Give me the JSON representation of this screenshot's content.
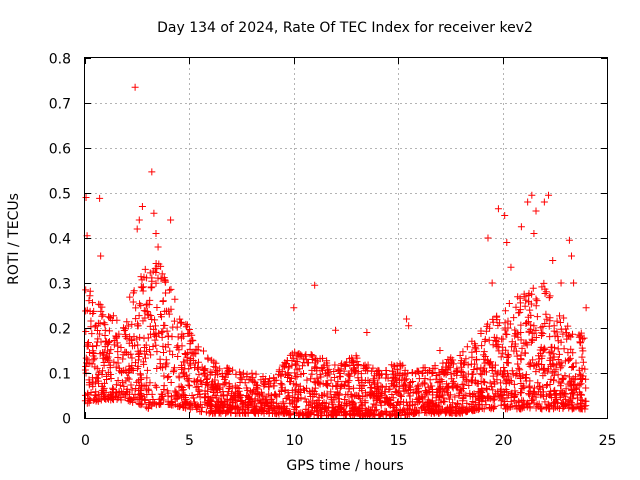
{
  "chart_data": {
    "type": "scatter",
    "title": "Day 134 of 2024, Rate Of TEC Index for receiver kev2",
    "xlabel": "GPS time / hours",
    "ylabel": "ROTI / TECUs",
    "xlim": [
      0,
      25
    ],
    "ylim": [
      0,
      0.8
    ],
    "x_ticks": [
      0,
      5,
      10,
      15,
      20,
      25
    ],
    "y_ticks": [
      0,
      0.1,
      0.2,
      0.3,
      0.4,
      0.5,
      0.6,
      0.7,
      0.8
    ],
    "x_tick_labels": [
      "0",
      "5",
      "10",
      "15",
      "20",
      "25"
    ],
    "y_tick_labels": [
      "0",
      "0.1",
      "0.2",
      "0.3",
      "0.4",
      "0.5",
      "0.6",
      "0.7",
      "0.8"
    ],
    "grid": true,
    "marker": "+",
    "color": "#ff0000",
    "series": [
      {
        "name": "ROTI",
        "envelope": [
          {
            "x": 0.0,
            "low": 0.03,
            "high": 0.3
          },
          {
            "x": 1.0,
            "low": 0.04,
            "high": 0.24
          },
          {
            "x": 2.0,
            "low": 0.04,
            "high": 0.26
          },
          {
            "x": 3.0,
            "low": 0.02,
            "high": 0.34
          },
          {
            "x": 3.5,
            "low": 0.03,
            "high": 0.35
          },
          {
            "x": 4.0,
            "low": 0.03,
            "high": 0.3
          },
          {
            "x": 5.0,
            "low": 0.02,
            "high": 0.2
          },
          {
            "x": 6.0,
            "low": 0.01,
            "high": 0.13
          },
          {
            "x": 7.0,
            "low": 0.01,
            "high": 0.11
          },
          {
            "x": 8.0,
            "low": 0.01,
            "high": 0.1
          },
          {
            "x": 9.0,
            "low": 0.01,
            "high": 0.09
          },
          {
            "x": 10.0,
            "low": 0.005,
            "high": 0.15
          },
          {
            "x": 11.0,
            "low": 0.005,
            "high": 0.14
          },
          {
            "x": 12.0,
            "low": 0.005,
            "high": 0.12
          },
          {
            "x": 13.0,
            "low": 0.005,
            "high": 0.14
          },
          {
            "x": 14.0,
            "low": 0.005,
            "high": 0.11
          },
          {
            "x": 15.0,
            "low": 0.005,
            "high": 0.13
          },
          {
            "x": 16.0,
            "low": 0.01,
            "high": 0.11
          },
          {
            "x": 17.0,
            "low": 0.01,
            "high": 0.12
          },
          {
            "x": 18.0,
            "low": 0.01,
            "high": 0.15
          },
          {
            "x": 19.0,
            "low": 0.02,
            "high": 0.2
          },
          {
            "x": 20.0,
            "low": 0.02,
            "high": 0.25
          },
          {
            "x": 21.0,
            "low": 0.02,
            "high": 0.28
          },
          {
            "x": 22.0,
            "low": 0.02,
            "high": 0.3
          },
          {
            "x": 23.0,
            "low": 0.02,
            "high": 0.22
          },
          {
            "x": 24.0,
            "low": 0.02,
            "high": 0.18
          }
        ],
        "outliers": [
          {
            "x": 0.05,
            "y": 0.49
          },
          {
            "x": 0.1,
            "y": 0.405
          },
          {
            "x": 0.7,
            "y": 0.488
          },
          {
            "x": 0.75,
            "y": 0.36
          },
          {
            "x": 2.4,
            "y": 0.735
          },
          {
            "x": 2.5,
            "y": 0.42
          },
          {
            "x": 2.6,
            "y": 0.44
          },
          {
            "x": 2.75,
            "y": 0.47
          },
          {
            "x": 3.2,
            "y": 0.547
          },
          {
            "x": 3.3,
            "y": 0.455
          },
          {
            "x": 3.4,
            "y": 0.41
          },
          {
            "x": 3.5,
            "y": 0.38
          },
          {
            "x": 4.1,
            "y": 0.44
          },
          {
            "x": 10.0,
            "y": 0.245
          },
          {
            "x": 11.0,
            "y": 0.295
          },
          {
            "x": 12.0,
            "y": 0.195
          },
          {
            "x": 13.5,
            "y": 0.19
          },
          {
            "x": 15.4,
            "y": 0.22
          },
          {
            "x": 15.5,
            "y": 0.205
          },
          {
            "x": 17.0,
            "y": 0.15
          },
          {
            "x": 19.3,
            "y": 0.4
          },
          {
            "x": 19.5,
            "y": 0.3
          },
          {
            "x": 19.8,
            "y": 0.465
          },
          {
            "x": 20.1,
            "y": 0.45
          },
          {
            "x": 20.2,
            "y": 0.39
          },
          {
            "x": 20.4,
            "y": 0.335
          },
          {
            "x": 20.9,
            "y": 0.425
          },
          {
            "x": 21.2,
            "y": 0.48
          },
          {
            "x": 21.4,
            "y": 0.495
          },
          {
            "x": 21.5,
            "y": 0.41
          },
          {
            "x": 21.6,
            "y": 0.46
          },
          {
            "x": 22.0,
            "y": 0.48
          },
          {
            "x": 22.2,
            "y": 0.495
          },
          {
            "x": 22.4,
            "y": 0.35
          },
          {
            "x": 22.8,
            "y": 0.3
          },
          {
            "x": 23.2,
            "y": 0.395
          },
          {
            "x": 23.3,
            "y": 0.36
          },
          {
            "x": 23.4,
            "y": 0.3
          },
          {
            "x": 24.0,
            "y": 0.245
          }
        ]
      }
    ]
  }
}
